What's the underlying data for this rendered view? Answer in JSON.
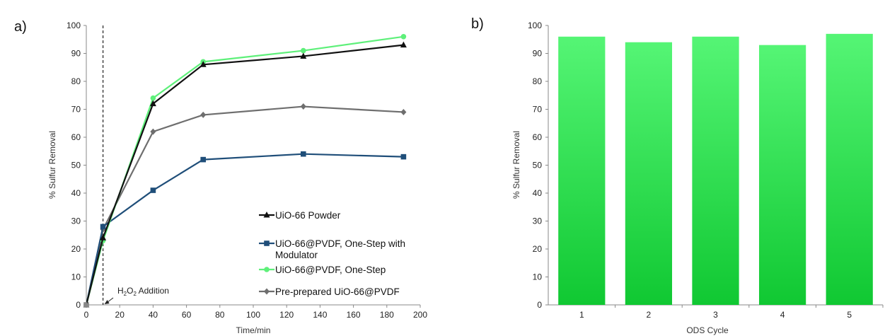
{
  "chart_data": [
    {
      "panel": "a)",
      "type": "line",
      "xlabel": "Time/min",
      "ylabel": "% Sulfur Removal",
      "xlim": [
        0,
        200
      ],
      "ylim": [
        0,
        100
      ],
      "xticks": [
        "0",
        "20",
        "40",
        "60",
        "80",
        "100",
        "120",
        "140",
        "160",
        "180",
        "200"
      ],
      "yticks": [
        "0",
        "10",
        "20",
        "30",
        "40",
        "50",
        "60",
        "70",
        "80",
        "90",
        "100"
      ],
      "grid": false,
      "legend_position": "bottom-right",
      "series": [
        {
          "name": "UiO-66 Powder",
          "color": "#111111",
          "marker": "triangle",
          "x": [
            0,
            10,
            40,
            70,
            130,
            190
          ],
          "y": [
            0,
            24,
            72,
            86,
            89,
            93
          ]
        },
        {
          "name": "UiO-66@PVDF, One-Step with Modulator",
          "color": "#1f4e79",
          "marker": "square",
          "x": [
            0,
            10,
            40,
            70,
            130,
            190
          ],
          "y": [
            0,
            28,
            41,
            52,
            54,
            53
          ]
        },
        {
          "name": "UiO-66@PVDF, One-Step",
          "color": "#5ef07a",
          "marker": "circle",
          "x": [
            0,
            10,
            40,
            70,
            130,
            190
          ],
          "y": [
            0,
            23,
            74,
            87,
            91,
            96
          ]
        },
        {
          "name": "Pre-prepared UiO-66@PVDF",
          "color": "#6e6e6e",
          "marker": "diamond",
          "x": [
            0,
            10,
            40,
            70,
            130,
            190
          ],
          "y": [
            0,
            27,
            62,
            68,
            71,
            69
          ]
        }
      ],
      "vline": {
        "x": 10,
        "style": "dashed"
      },
      "annotation": {
        "text_main": "H",
        "text_sub": "2",
        "text_mid": "O",
        "text_sub2": "2",
        "text_end": " Addition",
        "x": 10,
        "y": 0
      }
    },
    {
      "panel": "b)",
      "type": "bar",
      "xlabel": "ODS Cycle",
      "ylabel": "% Sulfur Removal",
      "ylim": [
        0,
        100
      ],
      "yticks": [
        "0",
        "10",
        "20",
        "30",
        "40",
        "50",
        "60",
        "70",
        "80",
        "90",
        "100"
      ],
      "categories": [
        "1",
        "2",
        "3",
        "4",
        "5"
      ],
      "values": [
        96,
        94,
        96,
        93,
        97
      ],
      "color_top": "#55f575",
      "color_bottom": "#10c832",
      "grid": false
    }
  ]
}
